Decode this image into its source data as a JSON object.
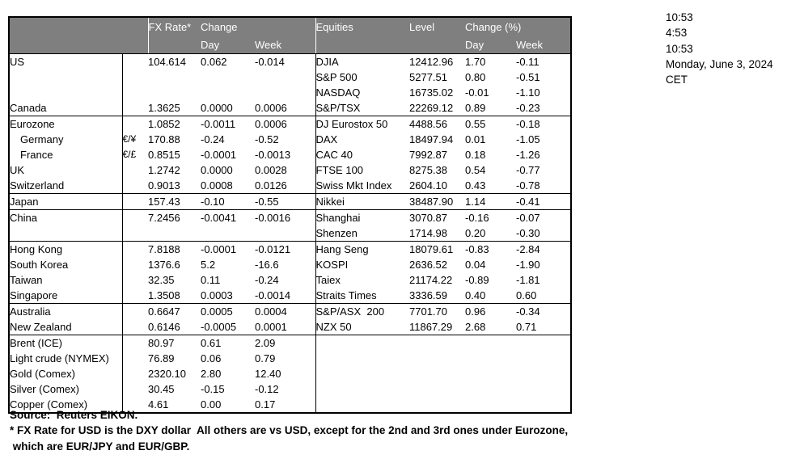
{
  "meta": {
    "times": [
      "10:53",
      "4:53",
      "10:53",
      "Monday, June 3, 2024",
      "CET"
    ]
  },
  "header": {
    "fx": {
      "rate_label": "FX Rate*",
      "change_label": "Change",
      "day": "Day",
      "week": "Week"
    },
    "eq": {
      "title": "Equities",
      "level": "Level",
      "change_label": "Change (%)",
      "day": "Day",
      "week": "Week"
    }
  },
  "table": {
    "rows": [
      {
        "label": "US",
        "sym": "",
        "fx": "104.614",
        "day": "0.062",
        "week": "-0.014",
        "eq": "DJIA",
        "level": "12412.96",
        "eq_day": "1.70",
        "eq_week": "-0.11"
      },
      {
        "label": "",
        "sym": "",
        "fx": "",
        "day": "",
        "week": "",
        "eq": "S&P 500",
        "level": "5277.51",
        "eq_day": "0.80",
        "eq_week": "-0.51"
      },
      {
        "label": "",
        "sym": "",
        "fx": "",
        "day": "",
        "week": "",
        "eq": "NASDAQ",
        "level": "16735.02",
        "eq_day": "-0.01",
        "eq_week": "-1.10"
      },
      {
        "label": "Canada",
        "sym": "",
        "fx": "1.3625",
        "day": "0.0000",
        "week": "0.0006",
        "eq": "S&P/TSX",
        "level": "22269.12",
        "eq_day": "0.89",
        "eq_week": "-0.23",
        "group_end": true
      },
      {
        "label": "Eurozone",
        "sym": "",
        "fx": "1.0852",
        "day": "-0.0011",
        "week": "0.0006",
        "eq": "DJ Eurostox 50",
        "level": "4488.56",
        "eq_day": "0.55",
        "eq_week": "-0.18"
      },
      {
        "label": "Germany",
        "indent": true,
        "sym": "€/¥",
        "fx": "170.88",
        "day": "-0.24",
        "week": "-0.52",
        "eq": "DAX",
        "level": "18497.94",
        "eq_day": "0.01",
        "eq_week": "-1.05"
      },
      {
        "label": "France",
        "indent": true,
        "sym": "€/£",
        "fx": "0.8515",
        "day": "-0.0001",
        "week": "-0.0013",
        "eq": "CAC 40",
        "level": "7992.87",
        "eq_day": "0.18",
        "eq_week": "-1.26"
      },
      {
        "label": "UK",
        "sym": "",
        "fx": "1.2742",
        "day": "0.0000",
        "week": "0.0028",
        "eq": "FTSE 100",
        "level": "8275.38",
        "eq_day": "0.54",
        "eq_week": "-0.77"
      },
      {
        "label": "Switzerland",
        "sym": "",
        "fx": "0.9013",
        "day": "0.0008",
        "week": "0.0126",
        "eq": "Swiss Mkt Index",
        "level": "2604.10",
        "eq_day": "0.43",
        "eq_week": "-0.78",
        "group_end": true
      },
      {
        "label": "Japan",
        "sym": "",
        "fx": "157.43",
        "day": "-0.10",
        "week": "-0.55",
        "eq": "Nikkei",
        "level": "38487.90",
        "eq_day": "1.14",
        "eq_week": "-0.41",
        "group_end": true
      },
      {
        "label": "China",
        "sym": "",
        "fx": "7.2456",
        "day": "-0.0041",
        "week": "-0.0016",
        "eq": "Shanghai",
        "level": "3070.87",
        "eq_day": "-0.16",
        "eq_week": "-0.07"
      },
      {
        "label": "",
        "sym": "",
        "fx": "",
        "day": "",
        "week": "",
        "eq": "Shenzen",
        "level": "1714.98",
        "eq_day": "0.20",
        "eq_week": "-0.30",
        "group_end": true
      },
      {
        "label": "Hong Kong",
        "sym": "",
        "fx": "7.8188",
        "day": "-0.0001",
        "week": "-0.0121",
        "eq": "Hang Seng",
        "level": "18079.61",
        "eq_day": "-0.83",
        "eq_week": "-2.84"
      },
      {
        "label": "South Korea",
        "sym": "",
        "fx": "1376.6",
        "day": "5.2",
        "week": "-16.6",
        "eq": "KOSPI",
        "level": "2636.52",
        "eq_day": "0.04",
        "eq_week": "-1.90"
      },
      {
        "label": "Taiwan",
        "sym": "",
        "fx": "32.35",
        "day": "0.11",
        "week": "-0.24",
        "eq": "Taiex",
        "level": "21174.22",
        "eq_day": "-0.89",
        "eq_week": "-1.81"
      },
      {
        "label": "Singapore",
        "sym": "",
        "fx": "1.3508",
        "day": "0.0003",
        "week": "-0.0014",
        "eq": "Straits Times",
        "level": "3336.59",
        "eq_day": "0.40",
        "eq_week": "0.60",
        "group_end": true
      },
      {
        "label": "Australia",
        "sym": "",
        "fx": "0.6647",
        "day": "0.0005",
        "week": "0.0004",
        "eq": "S&P/ASX  200",
        "level": "7701.70",
        "eq_day": "0.96",
        "eq_week": "-0.34"
      },
      {
        "label": "New Zealand",
        "sym": "",
        "fx": "0.6146",
        "day": "-0.0005",
        "week": "0.0001",
        "eq": "NZX 50",
        "level": "11867.29",
        "eq_day": "2.68",
        "eq_week": "0.71",
        "group_end": true
      },
      {
        "label": "Brent (ICE)",
        "sym": "",
        "fx": "80.97",
        "day": "0.61",
        "week": "2.09",
        "eq": "",
        "level": "",
        "eq_day": "",
        "eq_week": ""
      },
      {
        "label": "Light crude (NYMEX)",
        "spill": true,
        "sym": "",
        "fx": "76.89",
        "day": "0.06",
        "week": "0.79",
        "eq": "",
        "level": "",
        "eq_day": "",
        "eq_week": ""
      },
      {
        "label": "Gold (Comex)",
        "sym": "",
        "fx": "2320.10",
        "day": "2.80",
        "week": "12.40",
        "eq": "",
        "level": "",
        "eq_day": "",
        "eq_week": ""
      },
      {
        "label": "Silver (Comex)",
        "sym": "",
        "fx": "30.45",
        "day": "-0.15",
        "week": "-0.12",
        "eq": "",
        "level": "",
        "eq_day": "",
        "eq_week": ""
      },
      {
        "label": "Copper (Comex)",
        "sym": "",
        "fx": "4.61",
        "day": "0.00",
        "week": "0.17",
        "eq": "",
        "level": "",
        "eq_day": "",
        "eq_week": ""
      }
    ]
  },
  "footer": {
    "source": "Source:  Reuters EIKON.",
    "note1": "* FX Rate for USD is the DXY dollar  All others are vs USD, except for the 2nd and 3rd ones under Eurozone,",
    "note2": " which are EUR/JPY and EUR/GBP."
  },
  "colors": {
    "header_bg": "#7f7f7f",
    "header_text": "#ffffff",
    "border": "#000000",
    "text": "#000000",
    "background": "#ffffff"
  }
}
